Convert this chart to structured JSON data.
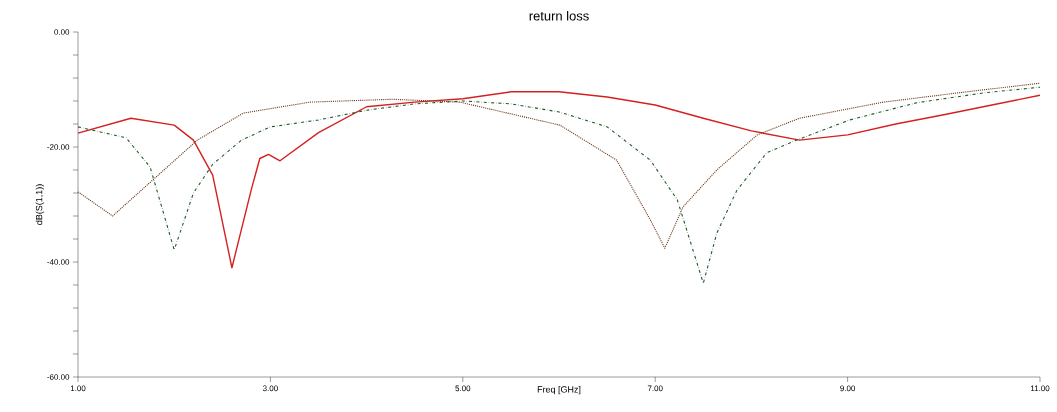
{
  "chart_data": {
    "type": "line",
    "title": "return loss",
    "xlabel": "Freq [GHz]",
    "ylabel": "dB(S(1,1))",
    "xlim": [
      1,
      11
    ],
    "xticks": [
      {
        "value": 1,
        "label": "1.00"
      },
      {
        "value": 3,
        "label": "3.00"
      },
      {
        "value": 5,
        "label": "5.00"
      },
      {
        "value": 7,
        "label": "7.00"
      },
      {
        "value": 9,
        "label": "9.00"
      },
      {
        "value": 11,
        "label": "11.00"
      }
    ],
    "ylim": [
      -60,
      0
    ],
    "yticks": [
      {
        "value": 0,
        "label": "0.00"
      },
      {
        "value": -4,
        "label": null
      },
      {
        "value": -8,
        "label": null
      },
      {
        "value": -12,
        "label": null
      },
      {
        "value": -16,
        "label": null
      },
      {
        "value": -20,
        "label": "-20.00"
      },
      {
        "value": -24,
        "label": null
      },
      {
        "value": -28,
        "label": null
      },
      {
        "value": -32,
        "label": null
      },
      {
        "value": -36,
        "label": null
      },
      {
        "value": -40,
        "label": "-40.00"
      },
      {
        "value": -44,
        "label": null
      },
      {
        "value": -48,
        "label": null
      },
      {
        "value": -52,
        "label": null
      },
      {
        "value": -56,
        "label": null
      },
      {
        "value": -60,
        "label": "-60.00"
      }
    ],
    "grid": false,
    "legend": false,
    "marker": "none",
    "series": [
      {
        "color": "#d42020",
        "line_style": "solid",
        "x": [
          1.0,
          1.55,
          2.0,
          2.2,
          2.4,
          2.6,
          2.8,
          2.89,
          2.98,
          3.1,
          3.5,
          4.0,
          4.5,
          5.0,
          5.5,
          6.0,
          6.5,
          7.0,
          7.5,
          8.0,
          8.5,
          9.0,
          9.5,
          10.0,
          10.5,
          11.0
        ],
        "values": [
          -17.6,
          -15,
          -16.2,
          -18.8,
          -24.9,
          -41,
          -27.5,
          -22,
          -21.3,
          -22.4,
          -17.5,
          -13,
          -12.2,
          -11.6,
          -10.4,
          -10.4,
          -11.3,
          -12.7,
          -15,
          -17.2,
          -18.8,
          -17.9,
          -16,
          -14.4,
          -12.7,
          -11
        ]
      },
      {
        "color": "#1f5a2a",
        "line_style": "dashed",
        "x": [
          1.0,
          1.5,
          1.75,
          2.0,
          2.2,
          2.4,
          2.7,
          3.0,
          3.5,
          4.0,
          4.5,
          5.0,
          5.5,
          6.0,
          6.5,
          6.95,
          7.23,
          7.5,
          7.64,
          7.85,
          8.16,
          8.47,
          9.02,
          9.72,
          10.41,
          11.0
        ],
        "values": [
          -16.5,
          -18.4,
          -23.5,
          -37.9,
          -28,
          -23,
          -18.8,
          -16.5,
          -15.3,
          -13.6,
          -12.5,
          -12,
          -12.5,
          -13.9,
          -16.5,
          -22.3,
          -29.2,
          -43.7,
          -35,
          -27.5,
          -21,
          -18.8,
          -15.3,
          -12.3,
          -10.6,
          -9.6
        ]
      },
      {
        "color": "#6b3a1a",
        "line_style": "dotted",
        "x": [
          1.0,
          1.36,
          1.72,
          2.24,
          2.72,
          3.41,
          4.27,
          4.97,
          6.01,
          6.6,
          6.95,
          7.1,
          7.29,
          7.64,
          8.06,
          8.5,
          9.37,
          10.24,
          11.0
        ],
        "values": [
          -27.8,
          -32,
          -26.6,
          -18.8,
          -14.1,
          -12.2,
          -11.7,
          -12.2,
          -16.2,
          -22.3,
          -32.7,
          -37.6,
          -30.4,
          -24,
          -17.9,
          -15,
          -12.2,
          -10.4,
          -8.9
        ]
      }
    ]
  }
}
